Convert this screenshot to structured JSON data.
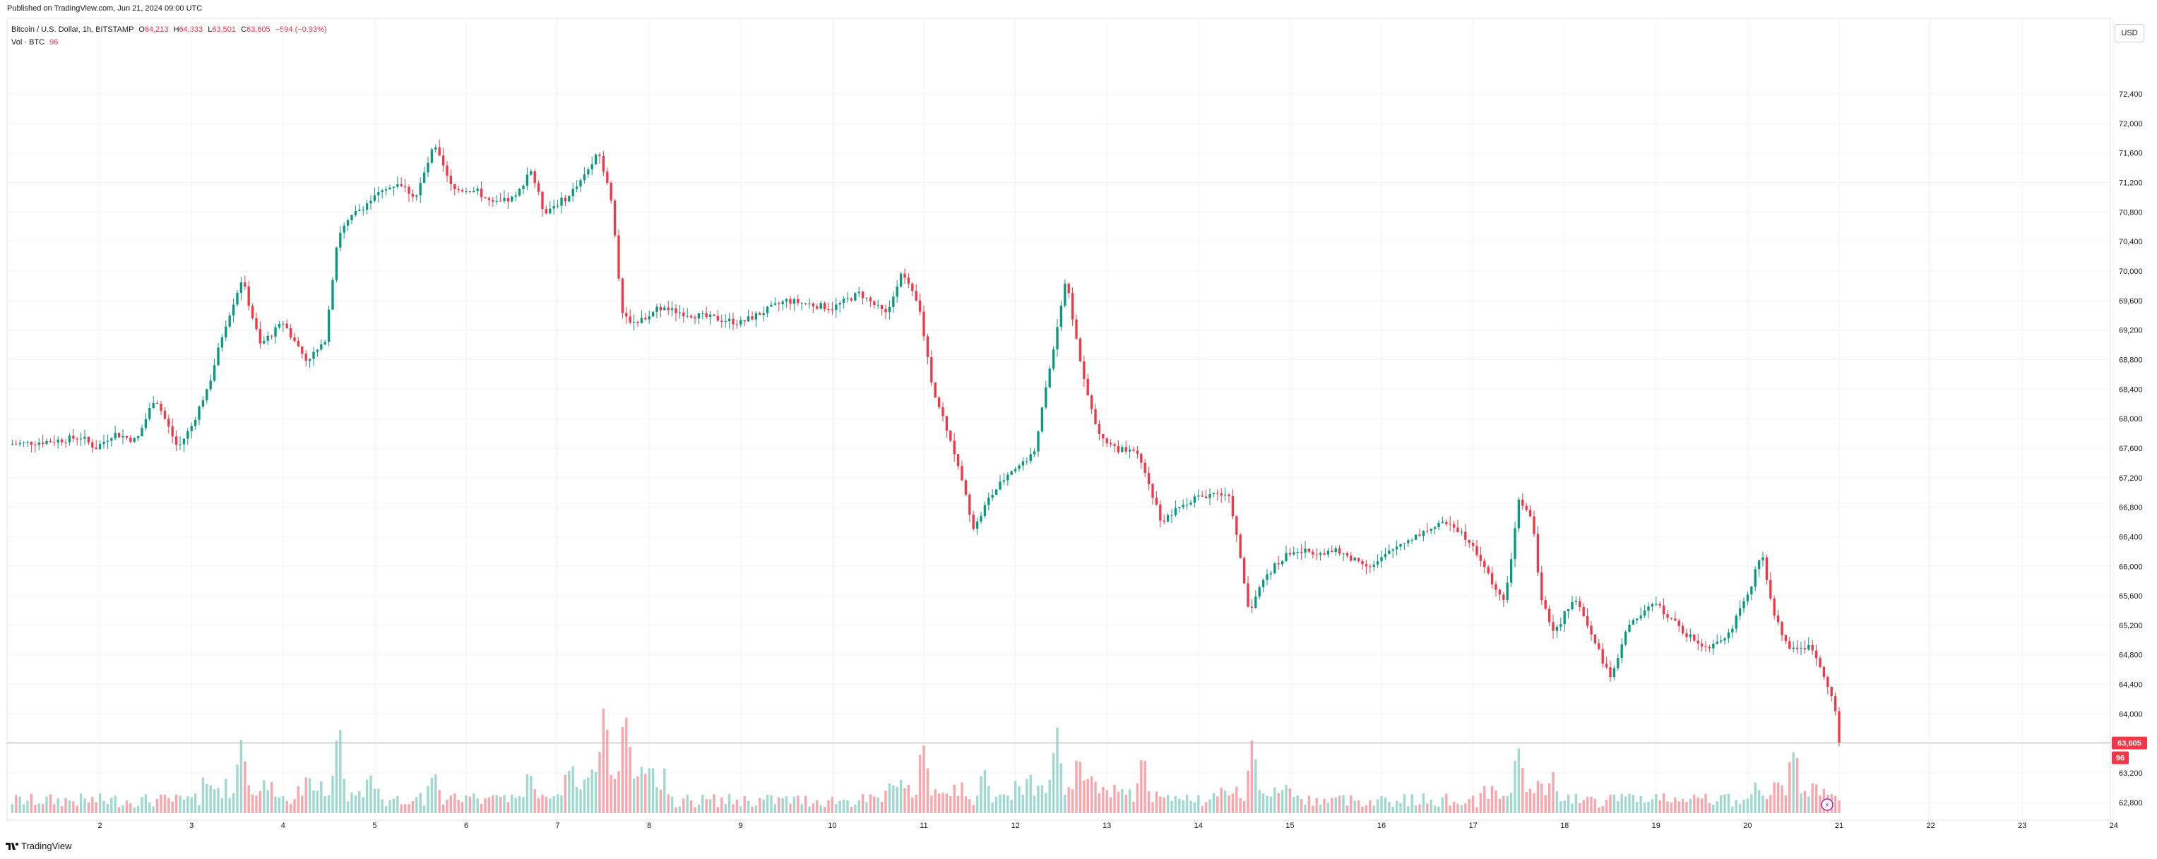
{
  "header": {
    "published": "Published on TradingView.com, Jun 21, 2024 09:00 UTC",
    "symbol": "Bitcoin / U.S. Dollar, 1h, BITSTAMP",
    "o_label": "O",
    "o_value": "64,213",
    "h_label": "H",
    "h_value": "64,333",
    "l_label": "L",
    "l_value": "63,501",
    "c_label": "C",
    "c_value": "63,605",
    "change": "−594 (−0.93%)",
    "vol_label": "Vol · BTC",
    "vol_value": "96"
  },
  "currency_label": "USD",
  "brand": "TradingView",
  "colors": {
    "up": "#089981",
    "down": "#f23645",
    "vol_up": "#9fd8cf",
    "vol_down": "#f9a5ab",
    "grid": "#f0f3fa",
    "axis_text": "#131722"
  },
  "chart_data": {
    "type": "candlestick",
    "interval": "1h",
    "symbol": "BTCUSD",
    "exchange": "BITSTAMP",
    "x_ticks": [
      "2",
      "3",
      "4",
      "5",
      "6",
      "7",
      "8",
      "9",
      "10",
      "11",
      "12",
      "13",
      "14",
      "15",
      "16",
      "17",
      "18",
      "19",
      "20",
      "21",
      "22",
      "23",
      "24"
    ],
    "y_ticks": [
      62800,
      63200,
      63600,
      64000,
      64400,
      64800,
      65200,
      65600,
      66000,
      66400,
      66800,
      67200,
      67600,
      68000,
      68400,
      68800,
      69200,
      69600,
      70000,
      70400,
      70800,
      71200,
      71600,
      72000,
      72400
    ],
    "y_tick_labels": [
      "62,800",
      "63,200",
      "63,600",
      "64,000",
      "64,400",
      "64,800",
      "65,200",
      "65,600",
      "66,000",
      "66,400",
      "66,800",
      "67,200",
      "67,600",
      "68,000",
      "68,400",
      "68,800",
      "69,200",
      "69,600",
      "70,000",
      "70,400",
      "70,800",
      "71,200",
      "71,600",
      "72,000",
      "72,400"
    ],
    "ylim": [
      62550,
      72850
    ],
    "last_price": 63605,
    "last_price_label": "63,605",
    "last_volume_label": "96",
    "anchors": [
      {
        "day": 1.0,
        "price": 67650
      },
      {
        "day": 1.5,
        "price": 67700
      },
      {
        "day": 1.8,
        "price": 67750
      },
      {
        "day": 1.95,
        "price": 67600
      },
      {
        "day": 2.15,
        "price": 67800
      },
      {
        "day": 2.4,
        "price": 67700
      },
      {
        "day": 2.6,
        "price": 68300
      },
      {
        "day": 2.85,
        "price": 67600
      },
      {
        "day": 3.0,
        "price": 67900
      },
      {
        "day": 3.2,
        "price": 68500
      },
      {
        "day": 3.35,
        "price": 69200
      },
      {
        "day": 3.55,
        "price": 69900
      },
      {
        "day": 3.75,
        "price": 69000
      },
      {
        "day": 4.0,
        "price": 69300
      },
      {
        "day": 4.25,
        "price": 68800
      },
      {
        "day": 4.45,
        "price": 69000
      },
      {
        "day": 4.6,
        "price": 70500
      },
      {
        "day": 4.8,
        "price": 70800
      },
      {
        "day": 5.0,
        "price": 71000
      },
      {
        "day": 5.25,
        "price": 71200
      },
      {
        "day": 5.45,
        "price": 71000
      },
      {
        "day": 5.65,
        "price": 71700
      },
      {
        "day": 5.85,
        "price": 71100
      },
      {
        "day": 6.1,
        "price": 71100
      },
      {
        "day": 6.3,
        "price": 70900
      },
      {
        "day": 6.55,
        "price": 71000
      },
      {
        "day": 6.7,
        "price": 71400
      },
      {
        "day": 6.85,
        "price": 70800
      },
      {
        "day": 7.1,
        "price": 71000
      },
      {
        "day": 7.25,
        "price": 71200
      },
      {
        "day": 7.45,
        "price": 71600
      },
      {
        "day": 7.6,
        "price": 70900
      },
      {
        "day": 7.7,
        "price": 69400
      },
      {
        "day": 7.85,
        "price": 69300
      },
      {
        "day": 8.1,
        "price": 69500
      },
      {
        "day": 8.5,
        "price": 69400
      },
      {
        "day": 9.0,
        "price": 69300
      },
      {
        "day": 9.5,
        "price": 69600
      },
      {
        "day": 10.0,
        "price": 69500
      },
      {
        "day": 10.3,
        "price": 69700
      },
      {
        "day": 10.6,
        "price": 69400
      },
      {
        "day": 10.75,
        "price": 70000
      },
      {
        "day": 10.95,
        "price": 69500
      },
      {
        "day": 11.1,
        "price": 68400
      },
      {
        "day": 11.3,
        "price": 67700
      },
      {
        "day": 11.55,
        "price": 66500
      },
      {
        "day": 11.7,
        "price": 66900
      },
      {
        "day": 11.95,
        "price": 67300
      },
      {
        "day": 12.2,
        "price": 67500
      },
      {
        "day": 12.45,
        "price": 69200
      },
      {
        "day": 12.55,
        "price": 69900
      },
      {
        "day": 12.75,
        "price": 68500
      },
      {
        "day": 12.9,
        "price": 67800
      },
      {
        "day": 13.1,
        "price": 67600
      },
      {
        "day": 13.35,
        "price": 67500
      },
      {
        "day": 13.6,
        "price": 66600
      },
      {
        "day": 13.9,
        "price": 66900
      },
      {
        "day": 14.2,
        "price": 67000
      },
      {
        "day": 14.35,
        "price": 66900
      },
      {
        "day": 14.55,
        "price": 65400
      },
      {
        "day": 14.75,
        "price": 65900
      },
      {
        "day": 15.0,
        "price": 66200
      },
      {
        "day": 15.5,
        "price": 66200
      },
      {
        "day": 15.9,
        "price": 66000
      },
      {
        "day": 16.2,
        "price": 66300
      },
      {
        "day": 16.5,
        "price": 66500
      },
      {
        "day": 16.75,
        "price": 66600
      },
      {
        "day": 17.0,
        "price": 66300
      },
      {
        "day": 17.2,
        "price": 65800
      },
      {
        "day": 17.35,
        "price": 65500
      },
      {
        "day": 17.5,
        "price": 66900
      },
      {
        "day": 17.65,
        "price": 66600
      },
      {
        "day": 17.75,
        "price": 65500
      },
      {
        "day": 17.9,
        "price": 65100
      },
      {
        "day": 18.1,
        "price": 65600
      },
      {
        "day": 18.35,
        "price": 64900
      },
      {
        "day": 18.5,
        "price": 64500
      },
      {
        "day": 18.7,
        "price": 65200
      },
      {
        "day": 19.0,
        "price": 65500
      },
      {
        "day": 19.3,
        "price": 65100
      },
      {
        "day": 19.55,
        "price": 64900
      },
      {
        "day": 19.8,
        "price": 65100
      },
      {
        "day": 20.0,
        "price": 65600
      },
      {
        "day": 20.15,
        "price": 66200
      },
      {
        "day": 20.3,
        "price": 65300
      },
      {
        "day": 20.45,
        "price": 64900
      },
      {
        "day": 20.7,
        "price": 64900
      },
      {
        "day": 20.85,
        "price": 64500
      },
      {
        "day": 20.95,
        "price": 64100
      },
      {
        "day": 21.0,
        "price": 63605
      }
    ],
    "volume_spikes": [
      {
        "day": 3.55,
        "volume": 370
      },
      {
        "day": 4.6,
        "volume": 390
      },
      {
        "day": 5.65,
        "volume": 220
      },
      {
        "day": 6.7,
        "volume": 210
      },
      {
        "day": 7.5,
        "volume": 520
      },
      {
        "day": 7.75,
        "volume": 490
      },
      {
        "day": 11.0,
        "volume": 340
      },
      {
        "day": 11.65,
        "volume": 190
      },
      {
        "day": 12.45,
        "volume": 390
      },
      {
        "day": 12.7,
        "volume": 300
      },
      {
        "day": 13.4,
        "volume": 250
      },
      {
        "day": 14.6,
        "volume": 300
      },
      {
        "day": 17.5,
        "volume": 330
      },
      {
        "day": 17.85,
        "volume": 200
      },
      {
        "day": 20.5,
        "volume": 320
      }
    ],
    "volume_ylim": [
      0,
      900
    ]
  }
}
